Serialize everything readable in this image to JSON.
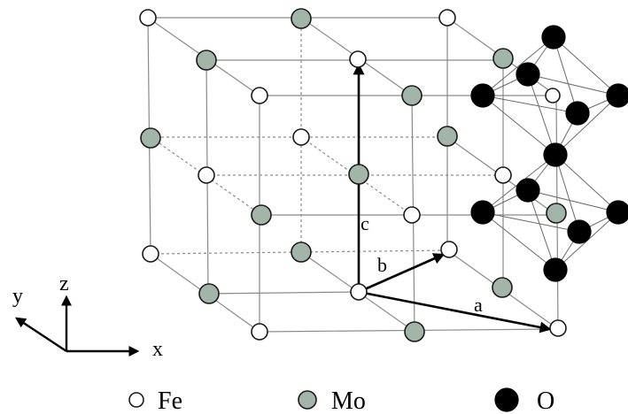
{
  "vectors": {
    "a": "a",
    "b": "b",
    "c": "c"
  },
  "axes": {
    "x": "x",
    "y": "y",
    "z": "z"
  },
  "legend": [
    {
      "symbol": "white-circle",
      "label": "Fe",
      "color": "#ffffff"
    },
    {
      "symbol": "gray-circle",
      "label": "Mo",
      "color": "#a3b5a8"
    },
    {
      "symbol": "black-circle",
      "label": "O",
      "color": "#000000"
    }
  ]
}
